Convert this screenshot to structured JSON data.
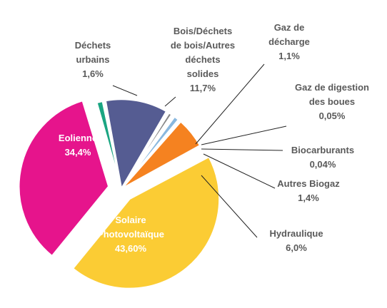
{
  "chart_data": {
    "type": "pie",
    "title": "",
    "slices": [
      {
        "key": "solaire",
        "label_lines": [
          "Solaire",
          "Photovoltaïque"
        ],
        "value": 43.6,
        "value_text": "43,60%",
        "color": "#fbcc34",
        "exploded": true
      },
      {
        "key": "eolienne",
        "label_lines": [
          "Eolienne"
        ],
        "value": 34.4,
        "value_text": "34,4%",
        "color": "#e6148c",
        "exploded": true
      },
      {
        "key": "dechets_urbains",
        "label_lines": [
          "Déchets",
          "urbains"
        ],
        "value": 1.6,
        "value_text": "1,6%",
        "color": "#1aa582",
        "exploded": false
      },
      {
        "key": "bois",
        "label_lines": [
          "Bois/Déchets",
          "de bois/Autres",
          "déchets",
          "solides"
        ],
        "value": 11.7,
        "value_text": "11,7%",
        "color": "#555c92",
        "exploded": false
      },
      {
        "key": "gaz_decharge",
        "label_lines": [
          "Gaz de",
          "décharge"
        ],
        "value": 1.1,
        "value_text": "1,1%",
        "color": "#858585",
        "exploded": false
      },
      {
        "key": "gaz_digestion",
        "label_lines": [
          "Gaz de digestion",
          "des boues"
        ],
        "value": 0.05,
        "value_text": "0,05%",
        "color": "#3f3f3f",
        "exploded": false
      },
      {
        "key": "biocarburants",
        "label_lines": [
          "Biocarburants"
        ],
        "value": 0.04,
        "value_text": "0,04%",
        "color": "#6d6d6d",
        "exploded": false
      },
      {
        "key": "autres_biogaz",
        "label_lines": [
          "Autres Biogaz"
        ],
        "value": 1.4,
        "value_text": "1,4%",
        "color": "#89b8df",
        "exploded": false
      },
      {
        "key": "hydraulique",
        "label_lines": [
          "Hydraulique"
        ],
        "value": 6.0,
        "value_text": "6,0%",
        "color": "#f58220",
        "exploded": false
      }
    ],
    "legend": "none"
  }
}
